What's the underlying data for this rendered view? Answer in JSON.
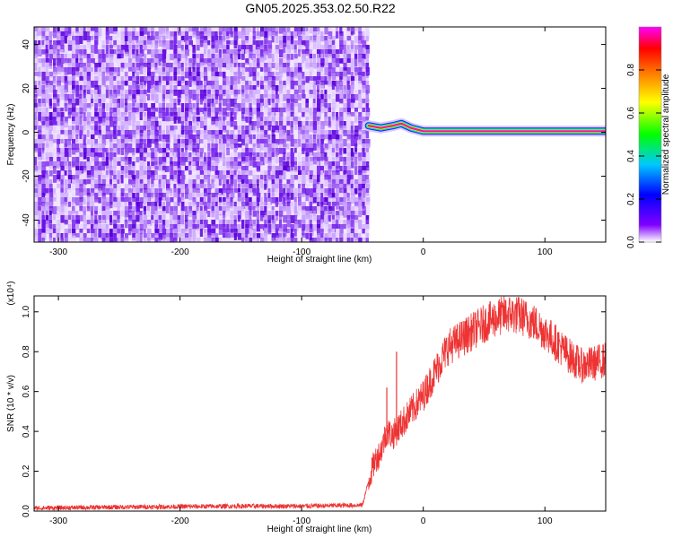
{
  "chart_data": [
    {
      "type": "heatmap",
      "title": "GN05.2025.353.02.50.R22",
      "xlabel": "Height of straight line (km)",
      "ylabel": "Frequency (Hz)",
      "xlim": [
        -320,
        150
      ],
      "ylim": [
        -50,
        48
      ],
      "x_ticks": [
        -300,
        -200,
        -100,
        0,
        100
      ],
      "y_ticks": [
        40,
        20,
        0,
        -20,
        -40
      ],
      "grid": false,
      "noise_region_x": [
        -320,
        -45
      ],
      "signal_track": [
        {
          "x": -45,
          "y": 3
        },
        {
          "x": -35,
          "y": 2
        },
        {
          "x": -25,
          "y": 3
        },
        {
          "x": -18,
          "y": 4
        },
        {
          "x": -10,
          "y": 2
        },
        {
          "x": 0,
          "y": 0.5
        },
        {
          "x": 150,
          "y": 0.5
        }
      ],
      "colorbar": {
        "label": "Normalized spectral amplitude",
        "range": [
          0,
          1
        ],
        "ticks": [
          "0.0",
          "0.2",
          "0.4",
          "0.6",
          "0.8"
        ],
        "colors": [
          "#ffffff",
          "#8000ff",
          "#0000ff",
          "#00c8ff",
          "#00ff00",
          "#ffff00",
          "#ff8000",
          "#ff0000",
          "#ff00ff"
        ]
      }
    },
    {
      "type": "line",
      "xlabel": "Height of straight line (km)",
      "ylabel": "SNR (10 * v/v)",
      "scale_label": "(x10⁴)",
      "xlim": [
        -320,
        150
      ],
      "ylim": [
        0,
        1.08
      ],
      "x_ticks": [
        -300,
        -200,
        -100,
        0,
        100
      ],
      "y_ticks": [
        "0.0",
        "0.2",
        "0.4",
        "0.6",
        "0.8",
        "1.0"
      ],
      "grid": false,
      "series": [
        {
          "color": "#ee3333",
          "x": [
            -320,
            -250,
            -150,
            -100,
            -50,
            -45,
            -40,
            -35,
            -30,
            -25,
            -20,
            -10,
            0,
            10,
            20,
            30,
            40,
            50,
            60,
            70,
            80,
            90,
            100,
            110,
            120,
            130,
            140,
            150
          ],
          "y": [
            0.015,
            0.02,
            0.025,
            0.025,
            0.03,
            0.15,
            0.25,
            0.3,
            0.4,
            0.38,
            0.42,
            0.5,
            0.58,
            0.7,
            0.82,
            0.86,
            0.9,
            0.94,
            0.97,
            0.99,
            0.98,
            0.95,
            0.9,
            0.84,
            0.78,
            0.73,
            0.74,
            0.76
          ]
        }
      ],
      "spikes": [
        {
          "x": -22,
          "y": 0.8
        },
        {
          "x": -30,
          "y": 0.62
        }
      ]
    }
  ]
}
